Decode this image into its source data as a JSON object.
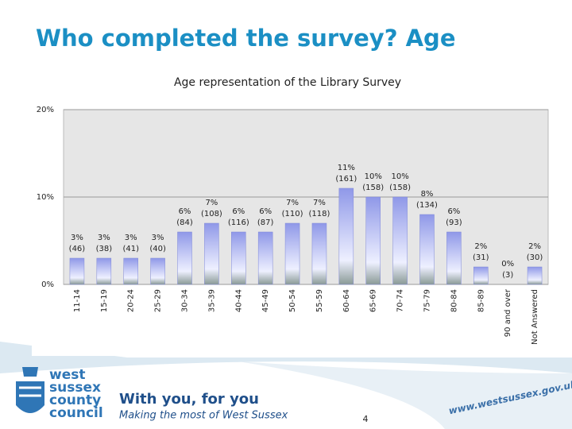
{
  "slide_title": "Who completed the survey? Age",
  "chart_data": {
    "type": "bar",
    "title": "Age representation of the Library Survey",
    "categories": [
      "11-14",
      "15-19",
      "20-24",
      "25-29",
      "30-34",
      "35-39",
      "40-44",
      "45-49",
      "50-54",
      "55-59",
      "60-64",
      "65-69",
      "70-74",
      "75-79",
      "80-84",
      "85-89",
      "90 and over",
      "Not Answered"
    ],
    "values": [
      3,
      3,
      3,
      3,
      6,
      7,
      6,
      6,
      7,
      7,
      11,
      10,
      10,
      8,
      6,
      2,
      0,
      2
    ],
    "value_labels": [
      "3%",
      "3%",
      "3%",
      "3%",
      "6%",
      "7%",
      "6%",
      "6%",
      "7%",
      "7%",
      "11%",
      "10%",
      "10%",
      "8%",
      "6%",
      "2%",
      "0%",
      "2%"
    ],
    "count_labels": [
      "(46)",
      "(38)",
      "(41)",
      "(40)",
      "(84)",
      "(108)",
      "(116)",
      "(87)",
      "(110)",
      "(118)",
      "(161)",
      "(158)",
      "(158)",
      "(134)",
      "(93)",
      "(31)",
      "(3)",
      "(30)"
    ],
    "color": "#8f98e8",
    "ylim": [
      0,
      20
    ],
    "yticks": [
      {
        "value": 0,
        "label": "0%"
      },
      {
        "value": 10,
        "label": "10%"
      },
      {
        "value": 20,
        "label": "20%"
      }
    ],
    "grid": true
  },
  "footer": {
    "logo_lines": [
      "west",
      "sussex",
      "county",
      "council"
    ],
    "slogan": "With you, for you",
    "tagline": "Making the most of West Sussex",
    "page_number": "4",
    "url": "www.westsussex.gov.uk"
  }
}
